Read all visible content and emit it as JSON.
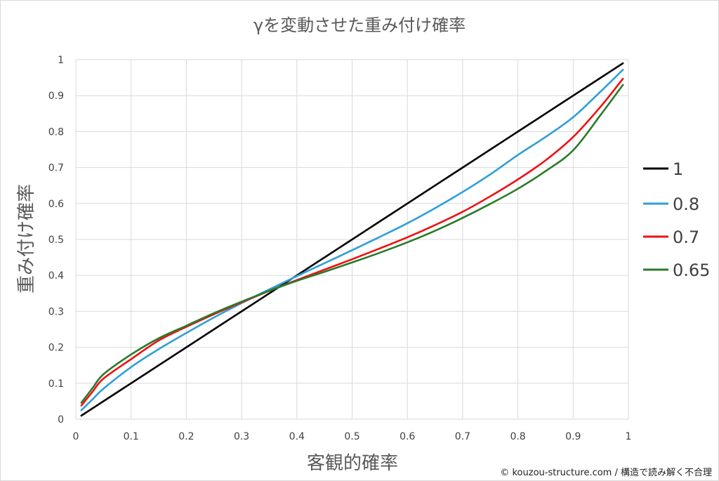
{
  "chart_data": {
    "type": "line",
    "title": "γを変動させた重み付け確率",
    "xlabel": "客観的確率",
    "ylabel": "重み付け確率",
    "xlim": [
      0,
      1
    ],
    "ylim": [
      0,
      1
    ],
    "x_ticks": [
      "0",
      "0.1",
      "0.2",
      "0.3",
      "0.4",
      "0.5",
      "0.6",
      "0.7",
      "0.8",
      "0.9",
      "1"
    ],
    "y_ticks": [
      "0",
      "0.1",
      "0.2",
      "0.3",
      "0.4",
      "0.5",
      "0.6",
      "0.7",
      "0.8",
      "0.9",
      "1"
    ],
    "grid": true,
    "legend_position": "right",
    "x": [
      0.01,
      0.03,
      0.05,
      0.1,
      0.15,
      0.2,
      0.25,
      0.3,
      0.35,
      0.4,
      0.45,
      0.5,
      0.55,
      0.6,
      0.65,
      0.7,
      0.75,
      0.8,
      0.85,
      0.9,
      0.95,
      0.99
    ],
    "series": [
      {
        "name": "1",
        "color": "#000000",
        "values": [
          0.01,
          0.03,
          0.05,
          0.1,
          0.15,
          0.2,
          0.25,
          0.3,
          0.35,
          0.4,
          0.45,
          0.5,
          0.55,
          0.6,
          0.65,
          0.7,
          0.75,
          0.8,
          0.85,
          0.9,
          0.95,
          0.99
        ]
      },
      {
        "name": "0.8",
        "color": "#2e9fd9",
        "values": [
          0.025,
          0.055,
          0.085,
          0.145,
          0.195,
          0.24,
          0.283,
          0.323,
          0.361,
          0.398,
          0.434,
          0.47,
          0.507,
          0.545,
          0.587,
          0.632,
          0.681,
          0.735,
          0.785,
          0.84,
          0.912,
          0.972
        ]
      },
      {
        "name": "0.7",
        "color": "#ee1111",
        "values": [
          0.038,
          0.076,
          0.113,
          0.167,
          0.219,
          0.257,
          0.292,
          0.325,
          0.357,
          0.387,
          0.416,
          0.445,
          0.475,
          0.506,
          0.54,
          0.577,
          0.62,
          0.667,
          0.72,
          0.785,
          0.87,
          0.947
        ]
      },
      {
        "name": "0.65",
        "color": "#2a7a2a",
        "values": [
          0.046,
          0.086,
          0.125,
          0.18,
          0.225,
          0.26,
          0.295,
          0.327,
          0.357,
          0.385,
          0.41,
          0.436,
          0.463,
          0.492,
          0.524,
          0.56,
          0.599,
          0.641,
          0.69,
          0.748,
          0.847,
          0.93
        ]
      }
    ]
  },
  "footer": {
    "credit": "© kouzou-structure.com / 構造で読み解く不合理"
  }
}
